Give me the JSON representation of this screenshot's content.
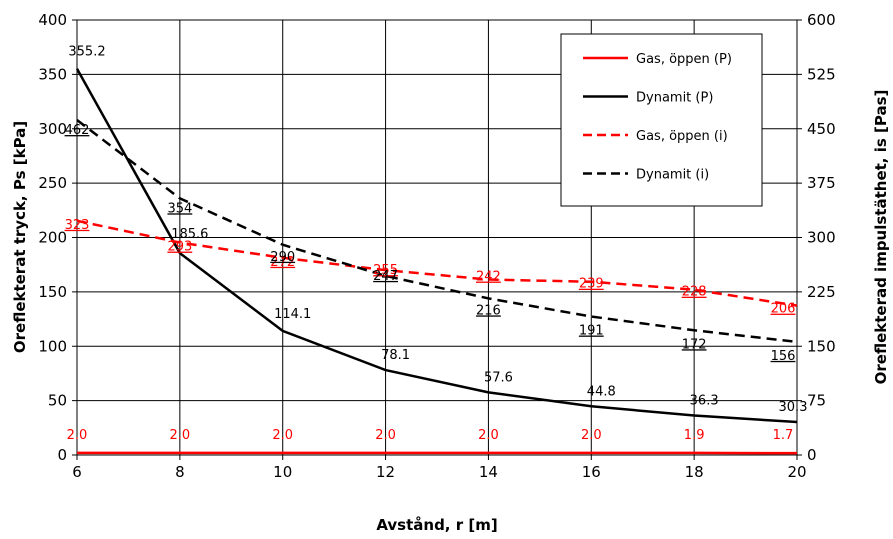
{
  "chart_data": {
    "type": "line",
    "xlabel": "Avstånd, r [m]",
    "ylabel_left": "Oreflekterat tryck, Ps [kPa]",
    "ylabel_right": "Oreflekterad impulstäthet, is [Pas]",
    "xlim": [
      6,
      20
    ],
    "ylim_left": [
      0,
      400
    ],
    "ylim_right": [
      0,
      600
    ],
    "x_ticks": [
      "6",
      "8",
      "10",
      "12",
      "14",
      "16",
      "18",
      "20"
    ],
    "y_left_ticks": [
      "0",
      "50",
      "100",
      "150",
      "200",
      "250",
      "300",
      "350",
      "400"
    ],
    "y_right_ticks": [
      "0",
      "75",
      "150",
      "225",
      "300",
      "375",
      "450",
      "525",
      "600"
    ],
    "grid": true,
    "legend_position": "top-right",
    "x": [
      6,
      8,
      10,
      12,
      14,
      16,
      18,
      20
    ],
    "series": [
      {
        "name": "Gas, öppen (P)",
        "axis": "left",
        "color": "#ff0000",
        "style": "solid",
        "values": [
          2.0,
          2.0,
          2.0,
          2.0,
          2.0,
          2.0,
          1.9,
          1.7
        ],
        "labels": [
          "2.0",
          "2.0",
          "2.0",
          "2.0",
          "2.0",
          "2.0",
          "1.9",
          "1.7"
        ]
      },
      {
        "name": "Dynamit (P)",
        "axis": "left",
        "color": "#000000",
        "style": "solid",
        "values": [
          355.2,
          185.6,
          114.1,
          78.1,
          57.6,
          44.8,
          36.3,
          30.3
        ],
        "labels": [
          "355.2",
          "185.6",
          "114.1",
          "78.1",
          "57.6",
          "44.8",
          "36.3",
          "30.3"
        ]
      },
      {
        "name": "Gas, öppen (i)",
        "axis": "right",
        "color": "#ff0000",
        "style": "dashed",
        "values": [
          323,
          293,
          272,
          255,
          242,
          239,
          228,
          206
        ],
        "labels": [
          "323",
          "293",
          "272",
          "255",
          "242",
          "239",
          "228",
          "206"
        ]
      },
      {
        "name": "Dynamit (i)",
        "axis": "right",
        "color": "#000000",
        "style": "dashed",
        "values": [
          462,
          354,
          290,
          247,
          216,
          191,
          172,
          156
        ],
        "labels": [
          "462",
          "354",
          "290",
          "247",
          "216",
          "191",
          "172",
          "156"
        ]
      }
    ]
  }
}
